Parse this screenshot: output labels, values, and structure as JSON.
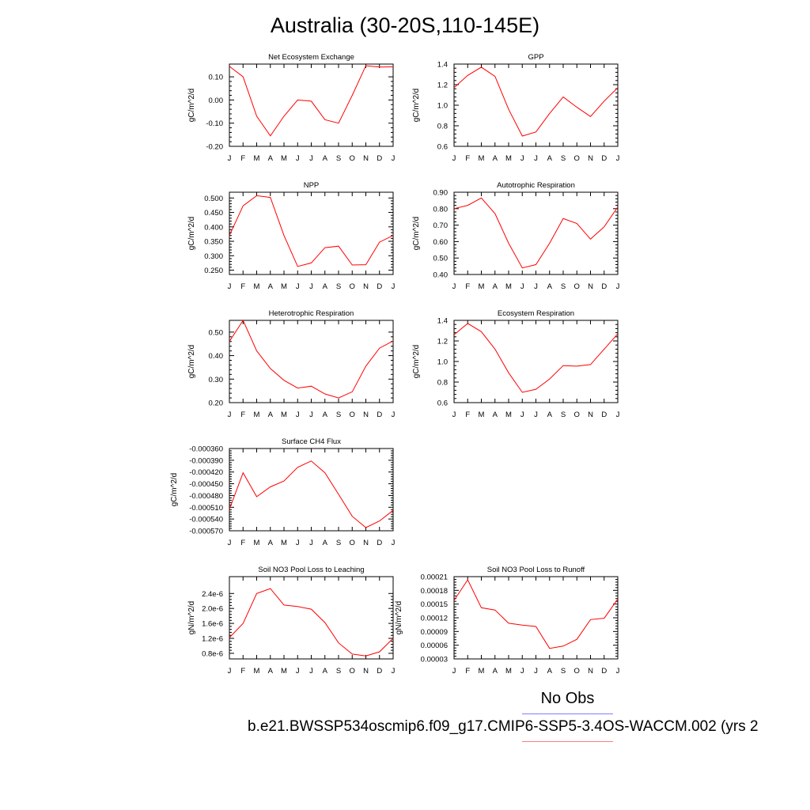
{
  "title": "Australia (30-20S,110-145E)",
  "legend": {
    "obs_label": "No Obs",
    "obs_color": "#7f7fff",
    "case_label": "b.e21.BWSSP534oscmip6.f09_g17.CMIP6-SSP5-3.4OS-WACCM.002 (yrs 2",
    "case_color": "#ff7f7f"
  },
  "line_color": "#ff0000",
  "chart_data": [
    {
      "type": "line",
      "title": "Net Ecosystem Exchange",
      "ylabel": "gC/m^2/d",
      "categories": [
        "J",
        "F",
        "M",
        "A",
        "M",
        "J",
        "J",
        "A",
        "S",
        "O",
        "N",
        "D",
        "J"
      ],
      "yticks": [
        "0.10",
        "0.00",
        "-0.10",
        "-0.20"
      ],
      "ytick_values": [
        0.1,
        0.0,
        -0.1,
        -0.2
      ],
      "ylim": [
        -0.2,
        0.155
      ],
      "values": [
        0.145,
        0.1,
        -0.07,
        -0.155,
        -0.07,
        0.0,
        -0.005,
        -0.085,
        -0.1,
        0.02,
        0.148,
        0.142,
        0.143
      ]
    },
    {
      "type": "line",
      "title": "GPP",
      "ylabel": "gC/m^2/d",
      "categories": [
        "J",
        "F",
        "M",
        "A",
        "M",
        "J",
        "J",
        "A",
        "S",
        "O",
        "N",
        "D",
        "J"
      ],
      "yticks": [
        "1.4",
        "1.2",
        "1.0",
        "0.8",
        "0.6"
      ],
      "ytick_values": [
        1.4,
        1.2,
        1.0,
        0.8,
        0.6
      ],
      "ylim": [
        0.6,
        1.4
      ],
      "values": [
        1.17,
        1.29,
        1.37,
        1.28,
        0.96,
        0.7,
        0.74,
        0.92,
        1.08,
        0.98,
        0.89,
        1.04,
        1.17
      ]
    },
    {
      "type": "line",
      "title": "NPP",
      "ylabel": "gC/m^2/d",
      "categories": [
        "J",
        "F",
        "M",
        "A",
        "M",
        "J",
        "J",
        "A",
        "S",
        "O",
        "N",
        "D",
        "J"
      ],
      "yticks": [
        "0.500",
        "0.450",
        "0.400",
        "0.350",
        "0.300",
        "0.250"
      ],
      "ytick_values": [
        0.5,
        0.45,
        0.4,
        0.35,
        0.3,
        0.25
      ],
      "ylim": [
        0.235,
        0.52
      ],
      "values": [
        0.37,
        0.473,
        0.508,
        0.502,
        0.37,
        0.263,
        0.275,
        0.328,
        0.333,
        0.268,
        0.269,
        0.347,
        0.37
      ]
    },
    {
      "type": "line",
      "title": "Autotrophic Respiration",
      "ylabel": "gC/m^2/d",
      "categories": [
        "J",
        "F",
        "M",
        "A",
        "M",
        "J",
        "J",
        "A",
        "S",
        "O",
        "N",
        "D",
        "J"
      ],
      "yticks": [
        "0.90",
        "0.80",
        "0.70",
        "0.60",
        "0.50",
        "0.40"
      ],
      "ytick_values": [
        0.9,
        0.8,
        0.7,
        0.6,
        0.5,
        0.4
      ],
      "ylim": [
        0.4,
        0.9
      ],
      "values": [
        0.8,
        0.82,
        0.865,
        0.77,
        0.59,
        0.44,
        0.46,
        0.59,
        0.74,
        0.71,
        0.615,
        0.69,
        0.81
      ]
    },
    {
      "type": "line",
      "title": "Heterotrophic Respiration",
      "ylabel": "gC/m^2/d",
      "categories": [
        "J",
        "F",
        "M",
        "A",
        "M",
        "J",
        "J",
        "A",
        "S",
        "O",
        "N",
        "D",
        "J"
      ],
      "yticks": [
        "0.50",
        "0.40",
        "0.30",
        "0.20"
      ],
      "ytick_values": [
        0.5,
        0.4,
        0.3,
        0.2
      ],
      "ylim": [
        0.2,
        0.55
      ],
      "values": [
        0.46,
        0.55,
        0.42,
        0.345,
        0.295,
        0.262,
        0.27,
        0.237,
        0.22,
        0.246,
        0.355,
        0.432,
        0.462
      ]
    },
    {
      "type": "line",
      "title": "Ecosystem Respiration",
      "ylabel": "gC/m^2/d",
      "categories": [
        "J",
        "F",
        "M",
        "A",
        "M",
        "J",
        "J",
        "A",
        "S",
        "O",
        "N",
        "D",
        "J"
      ],
      "yticks": [
        "1.4",
        "1.2",
        "1.0",
        "0.8",
        "0.6"
      ],
      "ytick_values": [
        1.4,
        1.2,
        1.0,
        0.8,
        0.6
      ],
      "ylim": [
        0.6,
        1.4
      ],
      "values": [
        1.26,
        1.37,
        1.29,
        1.12,
        0.89,
        0.7,
        0.73,
        0.83,
        0.96,
        0.955,
        0.97,
        1.12,
        1.27
      ]
    },
    {
      "type": "line",
      "title": "Surface CH4 Flux",
      "ylabel": "gC/m^2/d",
      "categories": [
        "J",
        "F",
        "M",
        "A",
        "M",
        "J",
        "J",
        "A",
        "S",
        "O",
        "N",
        "D",
        "J"
      ],
      "yticks": [
        "-0.000360",
        "-0.000390",
        "-0.000420",
        "-0.000450",
        "-0.000480",
        "-0.000510",
        "-0.000540",
        "-0.000570"
      ],
      "ytick_values": [
        -0.00036,
        -0.00039,
        -0.00042,
        -0.00045,
        -0.00048,
        -0.00051,
        -0.00054,
        -0.00057
      ],
      "ylim": [
        -0.00057,
        -0.00036
      ],
      "values": [
        -0.000515,
        -0.000422,
        -0.000483,
        -0.000458,
        -0.000443,
        -0.000408,
        -0.000392,
        -0.000422,
        -0.000477,
        -0.000533,
        -0.000562,
        -0.000545,
        -0.000518
      ]
    },
    {
      "type": "line",
      "title": "Soil NO3 Pool Loss to Leaching",
      "ylabel": "gN/m^2/d",
      "categories": [
        "J",
        "F",
        "M",
        "A",
        "M",
        "J",
        "J",
        "A",
        "S",
        "O",
        "N",
        "D",
        "J"
      ],
      "yticks": [
        "2.4e-6",
        "2.0e-6",
        "1.6e-6",
        "1.2e-6",
        "0.8e-6"
      ],
      "ytick_values": [
        2.4e-06,
        2e-06,
        1.6e-06,
        1.2e-06,
        8e-07
      ],
      "ylim": [
        6.5e-07,
        2.85e-06
      ],
      "values": [
        1.22e-06,
        1.6e-06,
        2.4e-06,
        2.53e-06,
        2.09e-06,
        2.05e-06,
        1.98e-06,
        1.62e-06,
        1.08e-06,
        7.8e-07,
        7.3e-07,
        8.4e-07,
        1.2e-06
      ]
    },
    {
      "type": "line",
      "title": "Soil NO3 Pool Loss to Runoff",
      "ylabel": "gN/m^2/d",
      "categories": [
        "J",
        "F",
        "M",
        "A",
        "M",
        "J",
        "J",
        "A",
        "S",
        "O",
        "N",
        "D",
        "J"
      ],
      "yticks": [
        "0.00021",
        "0.00018",
        "0.00015",
        "0.00012",
        "0.00009",
        "0.00006",
        "0.00003"
      ],
      "ytick_values": [
        0.00021,
        0.00018,
        0.00015,
        0.00012,
        9e-05,
        6e-05,
        3e-05
      ],
      "ylim": [
        3e-05,
        0.00021
      ],
      "values": [
        0.000158,
        0.000203,
        0.000142,
        0.000137,
        0.000108,
        0.000104,
        0.000101,
        5.3e-05,
        5.8e-05,
        7.3e-05,
        0.000116,
        0.000119,
        0.000161
      ]
    }
  ]
}
